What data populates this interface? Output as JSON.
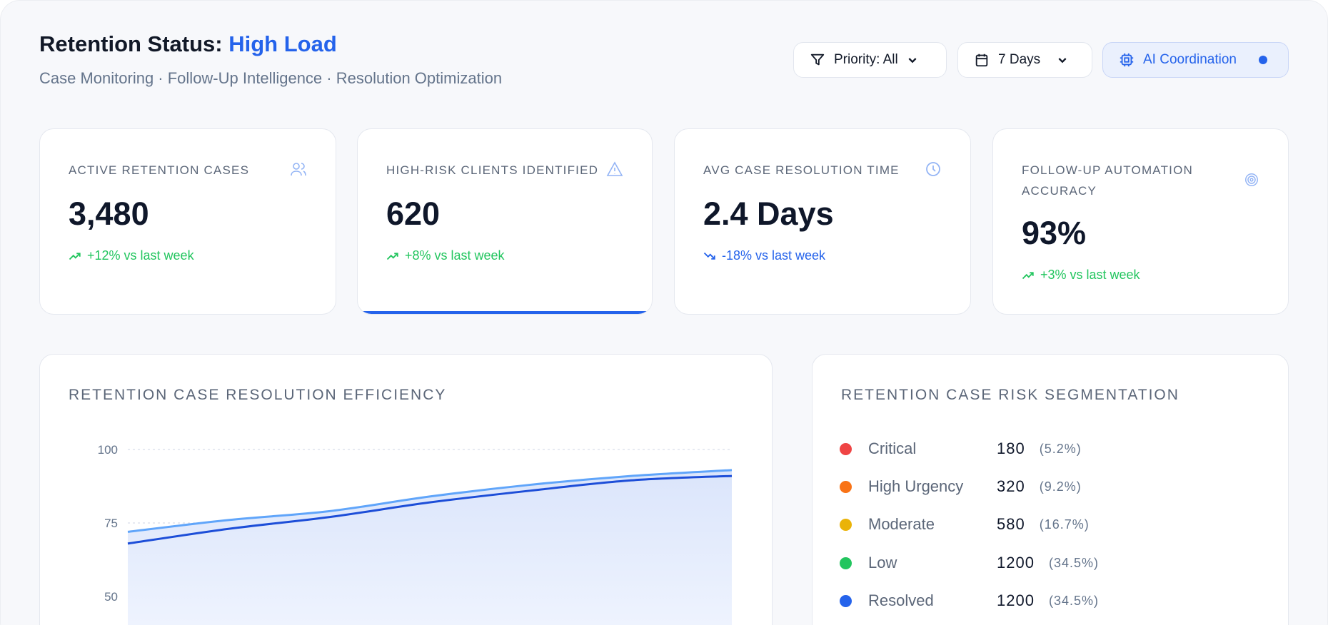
{
  "header": {
    "title_prefix": "Retention Status: ",
    "title_status": "High Load",
    "subtitle": "Case Monitoring · Follow-Up Intelligence · Resolution Optimization"
  },
  "toolbar": {
    "priority_label": "Priority: All",
    "range_label": "7 Days",
    "ai_label": "AI Coordination",
    "accent": "#2563eb"
  },
  "kpis": [
    {
      "label": "ACTIVE RETENTION CASES",
      "value": "3,480",
      "change": "+12% vs last week",
      "trend": "up",
      "icon": "users-icon"
    },
    {
      "label": "HIGH-RISK CLIENTS IDENTIFIED",
      "value": "620",
      "change": "+8% vs last week",
      "trend": "up",
      "icon": "warning-icon",
      "active": true
    },
    {
      "label": "AVG CASE RESOLUTION TIME",
      "value": "2.4 Days",
      "change": "-18% vs last week",
      "trend": "down",
      "icon": "clock-icon"
    },
    {
      "label": "FOLLOW-UP AUTOMATION ACCURACY",
      "value": "93%",
      "change": "+3% vs last week",
      "trend": "up",
      "icon": "target-icon"
    }
  ],
  "efficiency": {
    "title": "RETENTION CASE RESOLUTION EFFICIENCY"
  },
  "chart_data": {
    "type": "area",
    "title": "RETENTION CASE RESOLUTION EFFICIENCY",
    "y_ticks": [
      "100",
      "75",
      "50"
    ],
    "ylim": [
      50,
      100
    ],
    "grid": true,
    "series": [
      {
        "values": [
          72,
          76,
          79,
          84,
          88,
          91,
          93
        ],
        "color": "#60a5fa"
      },
      {
        "values": [
          68,
          73,
          77,
          82,
          86,
          89.5,
          91
        ],
        "color": "#1d4ed8"
      }
    ]
  },
  "segmentation": {
    "title": "RETENTION CASE RISK SEGMENTATION",
    "items": [
      {
        "label": "Critical",
        "value": "180",
        "pct": "(5.2%)",
        "color": "#ef4444"
      },
      {
        "label": "High Urgency",
        "value": "320",
        "pct": "(9.2%)",
        "color": "#f97316"
      },
      {
        "label": "Moderate",
        "value": "580",
        "pct": "(16.7%)",
        "color": "#eab308"
      },
      {
        "label": "Low",
        "value": "1200",
        "pct": "(34.5%)",
        "color": "#22c55e"
      },
      {
        "label": "Resolved",
        "value": "1200",
        "pct": "(34.5%)",
        "color": "#2563eb"
      }
    ]
  }
}
